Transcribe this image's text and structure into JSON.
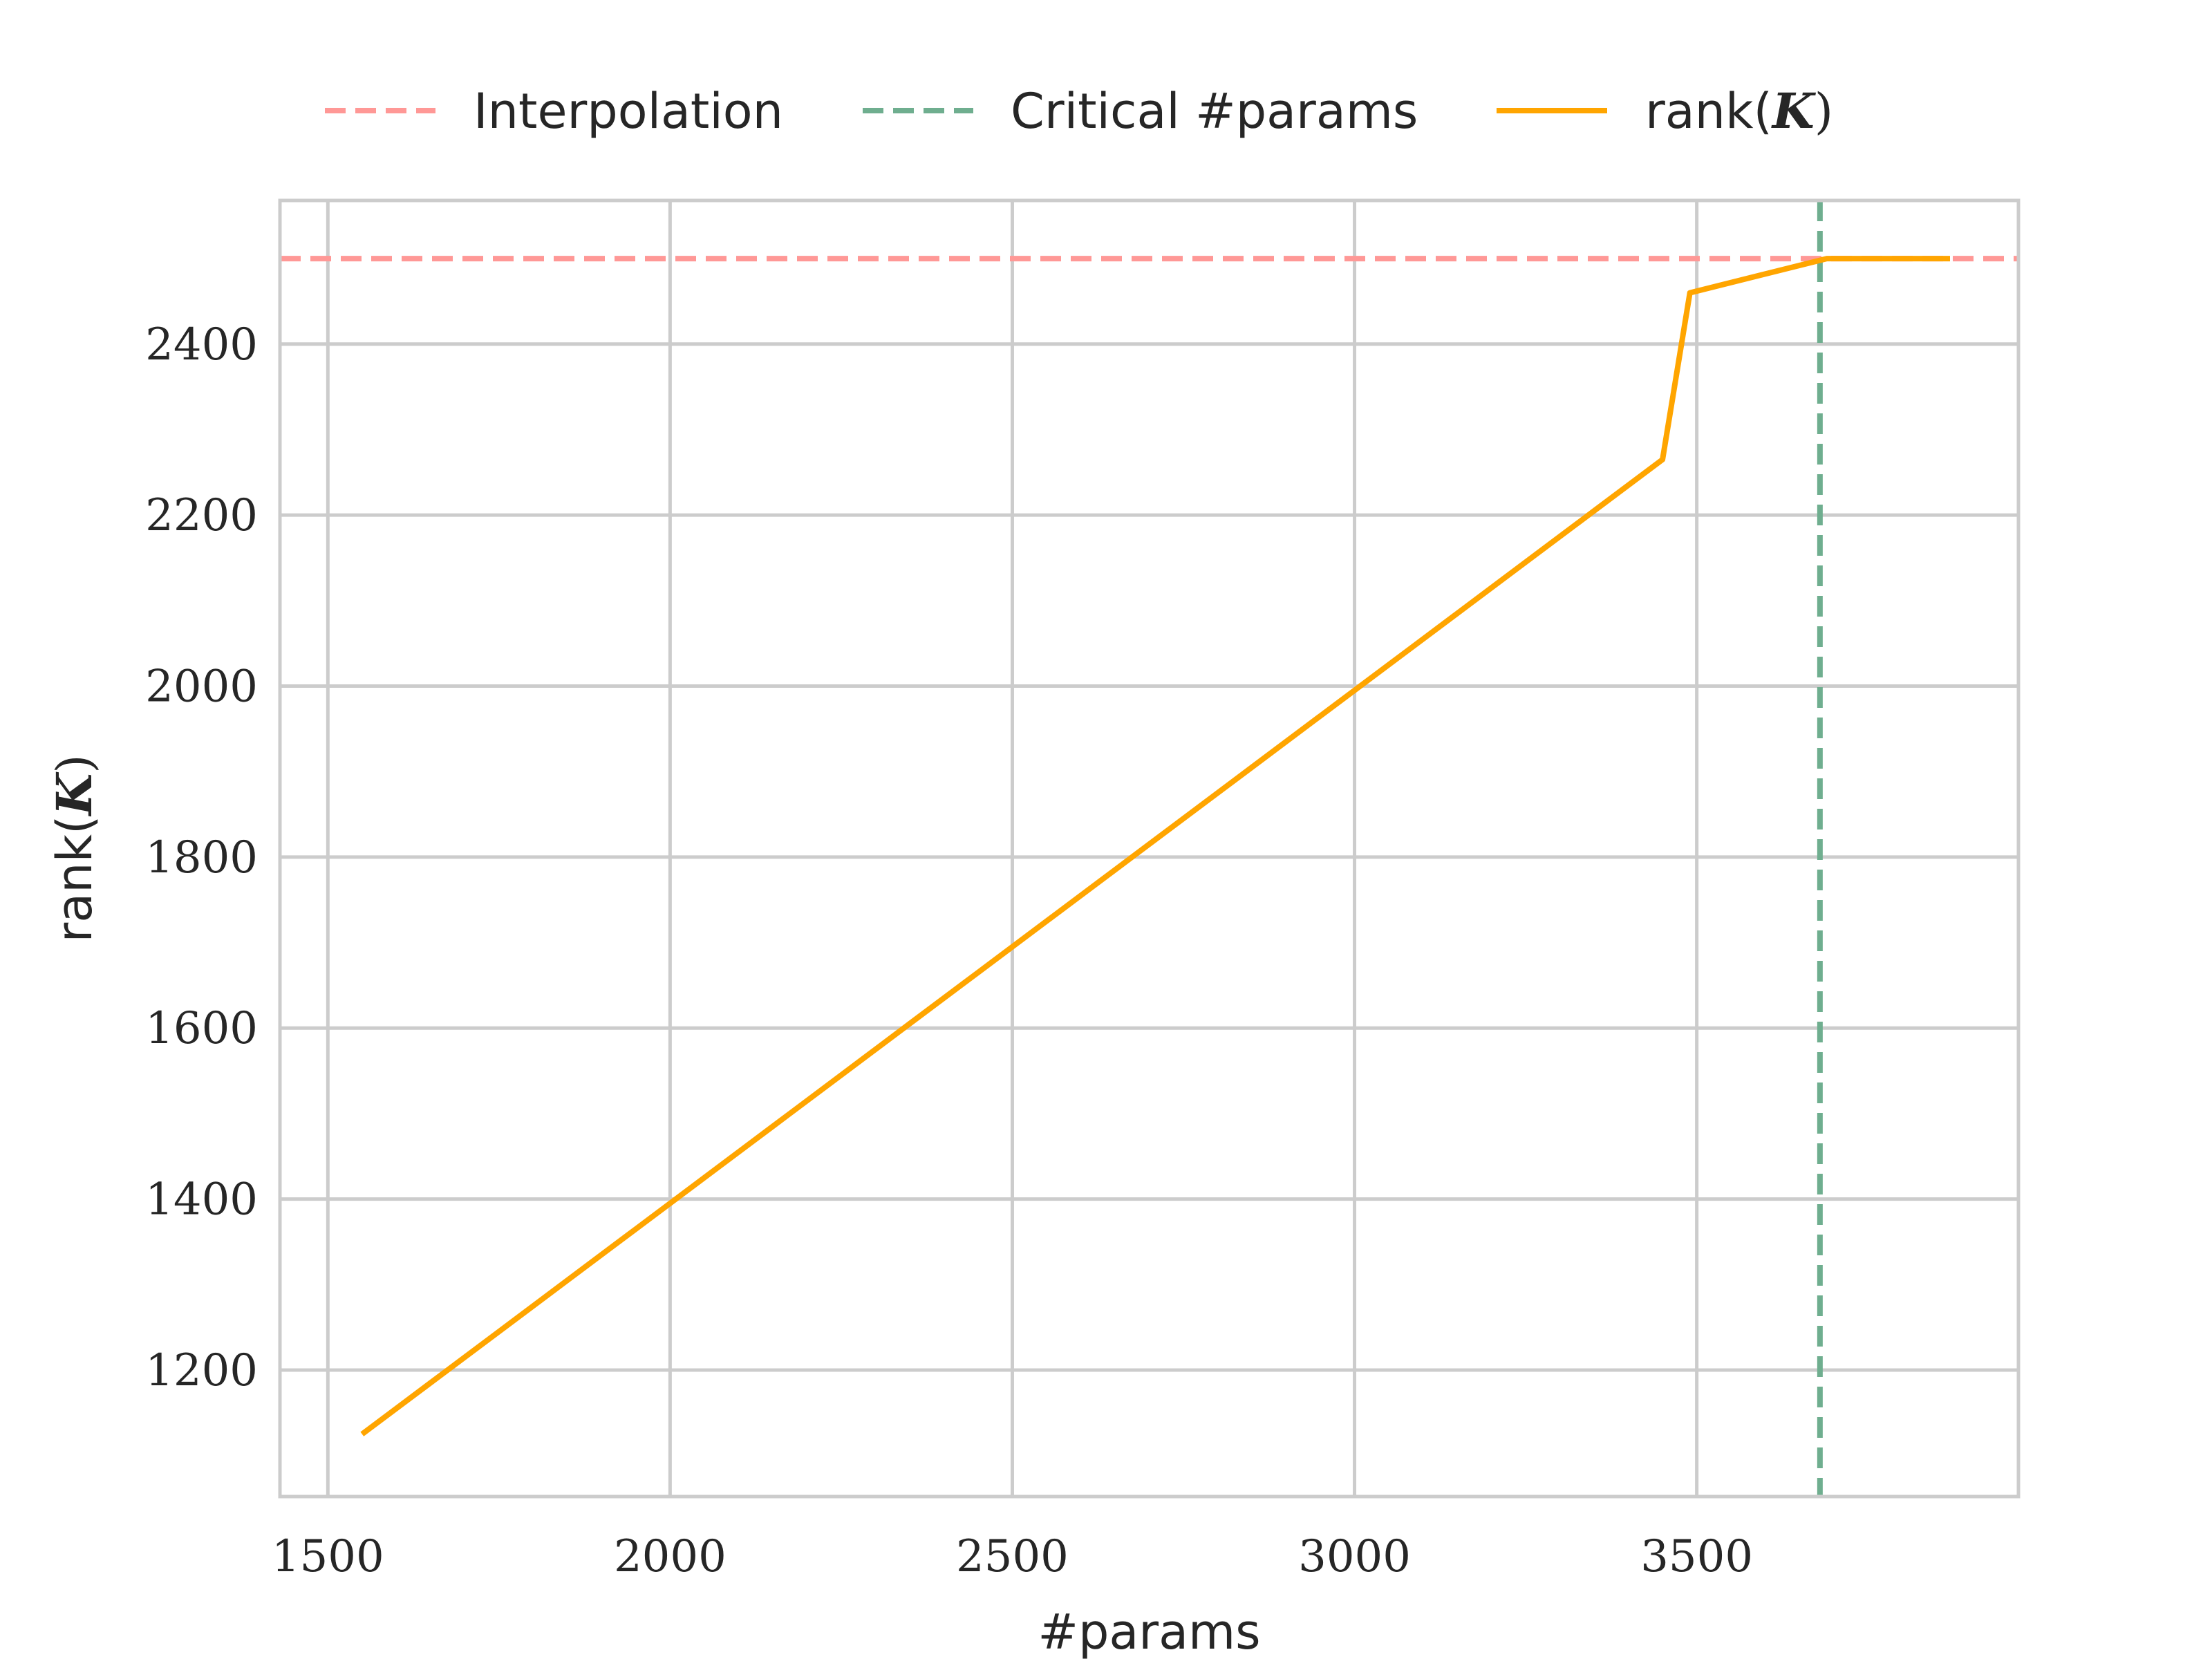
{
  "chart_data": {
    "type": "line",
    "xlabel": "#params",
    "ylabel": {
      "prefix": "rank(",
      "symbol": "K",
      "suffix": ")"
    },
    "xlim": [
      1430,
      3970
    ],
    "ylim": [
      1052,
      2568
    ],
    "xticks": [
      1500,
      2000,
      2500,
      3000,
      3500
    ],
    "yticks": [
      1200,
      1400,
      1600,
      1800,
      2000,
      2200,
      2400
    ],
    "grid": true,
    "legend_position": "top-center",
    "series": [
      {
        "name": "Interpolation",
        "kind": "hline",
        "style": "dashed",
        "color": "#ff9896",
        "y": 2500
      },
      {
        "name": "Critical #params",
        "kind": "vline",
        "style": "dashed",
        "color": "#6fae8f",
        "x": 3680
      },
      {
        "name": "rank(K)",
        "legend": {
          "prefix": "rank(",
          "symbol": "K",
          "suffix": ")"
        },
        "kind": "line",
        "style": "solid",
        "color": "#ffa500",
        "x": [
          1550,
          1650,
          1750,
          1850,
          1950,
          2050,
          2150,
          2250,
          2350,
          2450,
          2550,
          2650,
          2750,
          2850,
          2950,
          3050,
          3150,
          3250,
          3350,
          3450,
          3490,
          3690,
          3870
        ],
        "y": [
          1125,
          1185,
          1245,
          1305,
          1365,
          1425,
          1485,
          1545,
          1605,
          1665,
          1725,
          1785,
          1845,
          1905,
          1965,
          2025,
          2085,
          2145,
          2205,
          2265,
          2460,
          2500,
          2500
        ]
      }
    ]
  }
}
